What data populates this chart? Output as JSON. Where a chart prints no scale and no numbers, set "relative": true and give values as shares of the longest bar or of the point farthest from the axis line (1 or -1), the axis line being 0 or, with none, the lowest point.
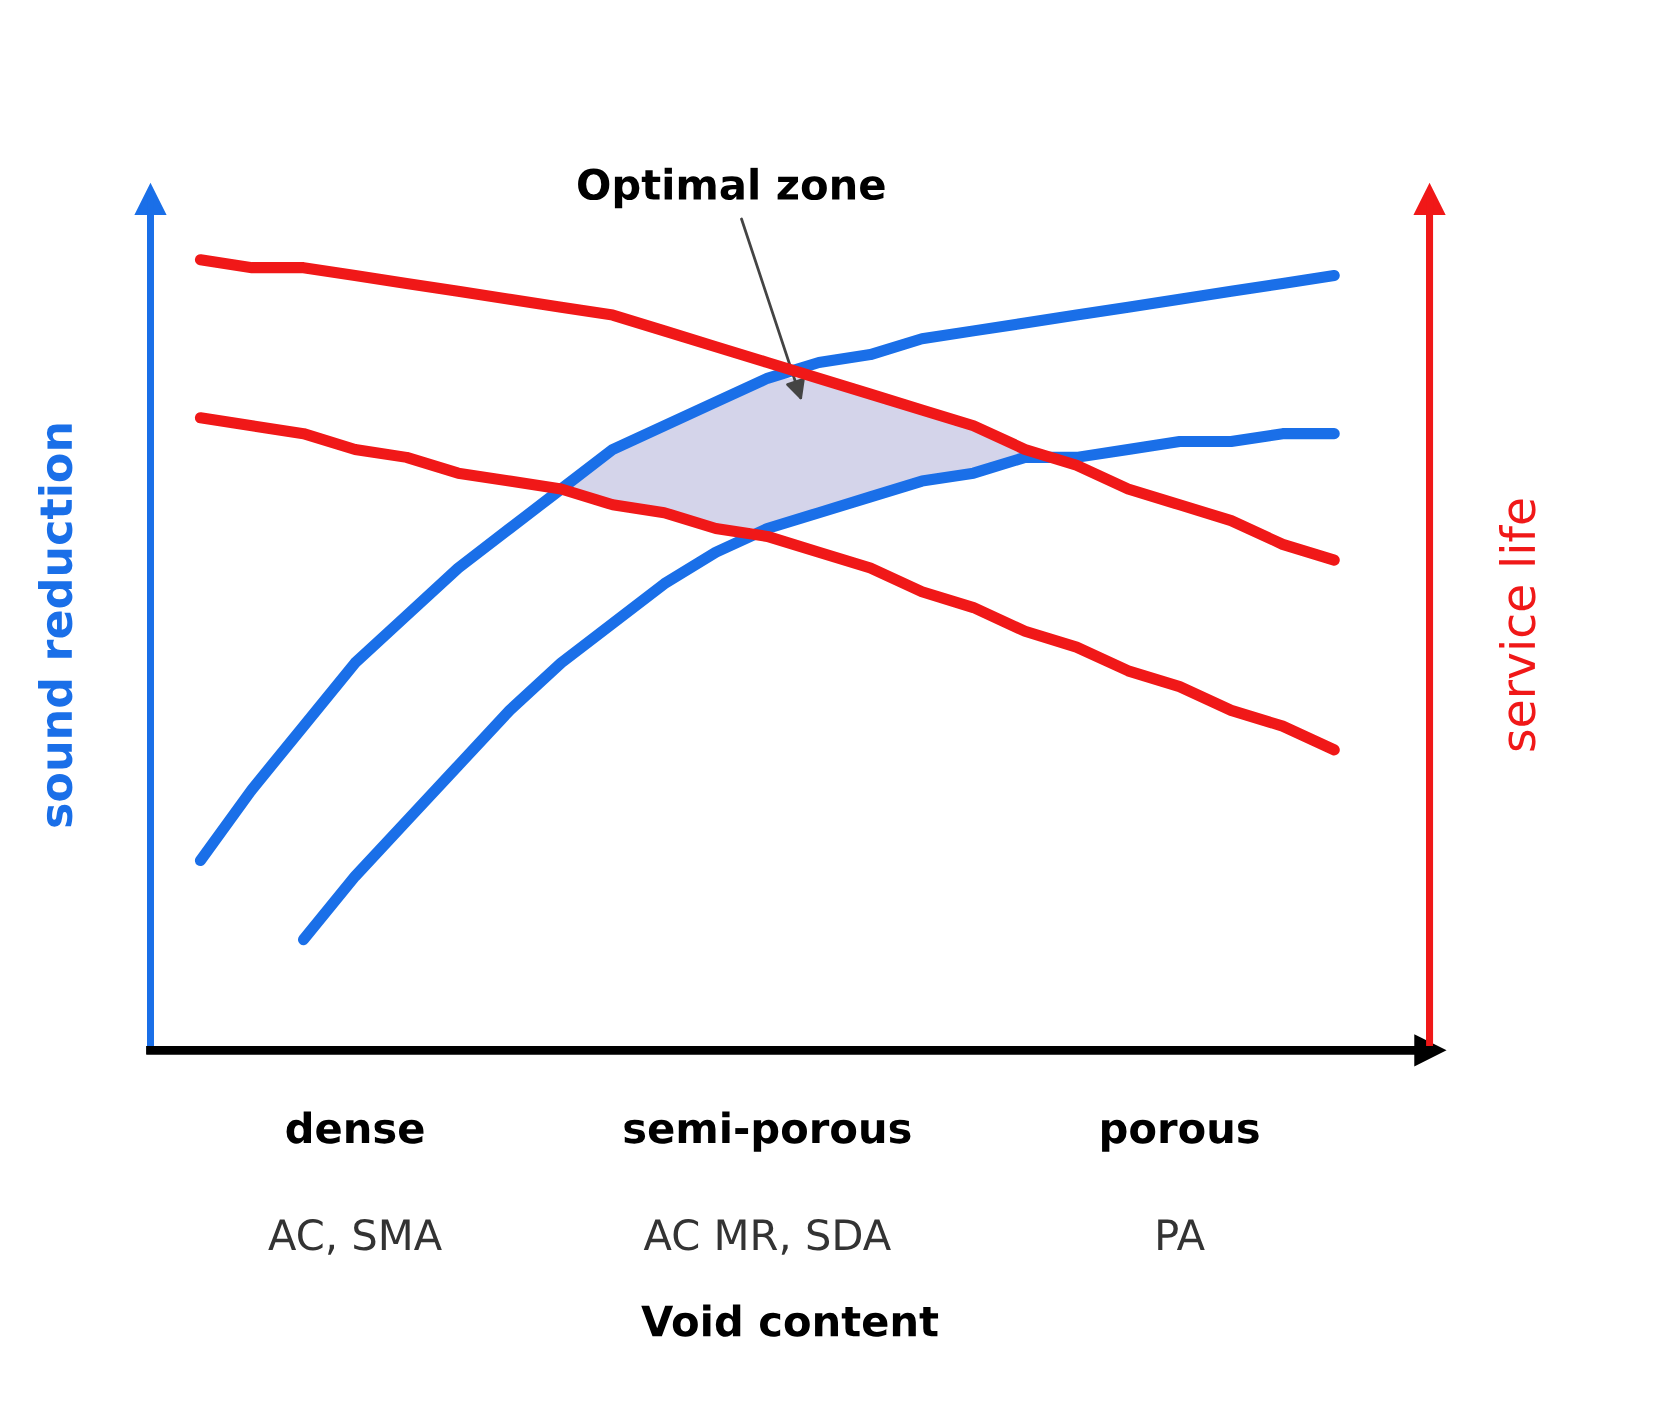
{
  "chart_data": {
    "type": "line",
    "relative": true,
    "xlabel": "Void content",
    "ylabel": "sound reduction",
    "y2label": "service life",
    "legend": false,
    "grid": false,
    "marker": "none",
    "line_style": "solid",
    "categories": [
      null,
      null,
      null,
      "dense",
      null,
      null,
      null,
      null,
      null,
      null,
      null,
      "semi-porous",
      null,
      null,
      null,
      null,
      null,
      null,
      null,
      "porous",
      null,
      null,
      null
    ],
    "annotations": [
      "Optimal zone",
      "AC, SMA",
      "AC MR, SDA",
      "PA"
    ],
    "series": [
      {
        "color": "#1a6fe8",
        "values": [
          0.24,
          0.33,
          0.41,
          0.49,
          0.55,
          0.61,
          0.66,
          0.71,
          0.76,
          0.79,
          0.82,
          0.85,
          0.87,
          0.88,
          0.9,
          0.91,
          0.92,
          0.93,
          0.94,
          0.95,
          0.96,
          0.97,
          0.98
        ]
      },
      {
        "color": "#1a6fe8",
        "values": [
          null,
          null,
          0.14,
          0.22,
          0.29,
          0.36,
          0.43,
          0.49,
          0.54,
          0.59,
          0.63,
          0.66,
          0.68,
          0.7,
          0.72,
          0.73,
          0.75,
          0.75,
          0.76,
          0.77,
          0.77,
          0.78,
          0.78
        ]
      },
      {
        "color": "#f01818",
        "axis": "y2",
        "values": [
          1.0,
          0.99,
          0.99,
          0.98,
          0.97,
          0.96,
          0.95,
          0.94,
          0.93,
          0.91,
          0.89,
          0.87,
          0.85,
          0.83,
          0.81,
          0.79,
          0.76,
          0.74,
          0.71,
          0.69,
          0.67,
          0.64,
          0.62
        ]
      },
      {
        "color": "#f01818",
        "axis": "y2",
        "values": [
          0.8,
          0.79,
          0.78,
          0.76,
          0.75,
          0.73,
          0.72,
          0.71,
          0.69,
          0.68,
          0.66,
          0.65,
          0.63,
          0.61,
          0.58,
          0.56,
          0.53,
          0.51,
          0.48,
          0.46,
          0.43,
          0.41,
          0.38
        ]
      }
    ]
  }
}
